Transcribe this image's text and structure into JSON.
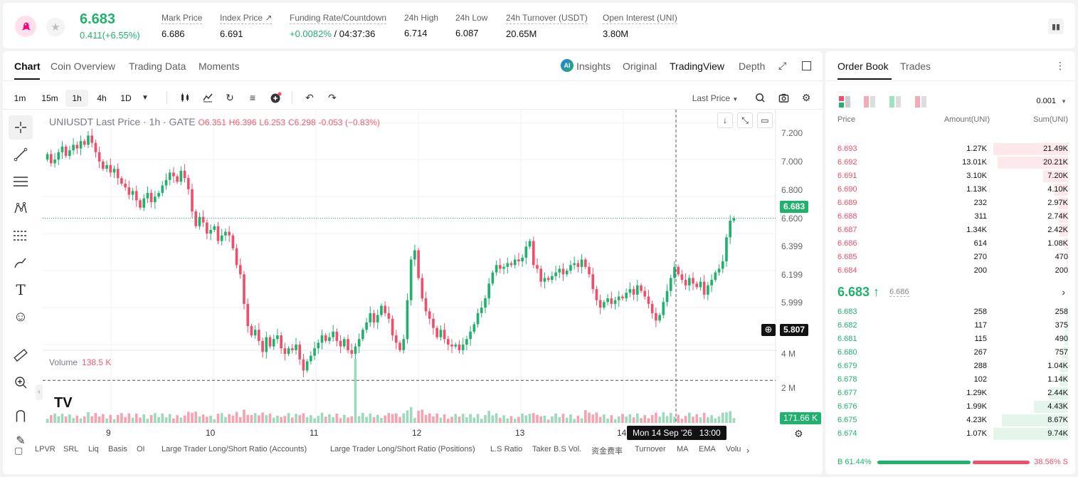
{
  "ticker": {
    "last_price": "6.683",
    "change": "0.411(+6.55%)",
    "stats": [
      {
        "label": "Mark Price",
        "value": "6.686"
      },
      {
        "label": "Index Price ↗",
        "value": "6.691"
      },
      {
        "label": "Funding Rate/Countdown",
        "value": "+0.0082%",
        "value2": " / 04:37:36"
      },
      {
        "label": "24h High",
        "value": "6.714"
      },
      {
        "label": "24h Low",
        "value": "6.087"
      },
      {
        "label": "24h Turnover (USDT)",
        "value": "20.65M"
      },
      {
        "label": "Open Interest (UNI)",
        "value": "3.80M"
      }
    ]
  },
  "chart_tabs": [
    "Chart",
    "Coin Overview",
    "Trading Data",
    "Moments"
  ],
  "view_tabs": {
    "insights": "Insights",
    "original": "Original",
    "tradingview": "TradingView",
    "depth": "Depth"
  },
  "intervals": [
    "1m",
    "15m",
    "1h",
    "4h",
    "1D"
  ],
  "price_select": "Last Price",
  "legend": {
    "symbol": "UNIUSDT Last Price · 1h · GATE",
    "o": "O6.351",
    "h": "H6.396",
    "l": "L6.253",
    "c": "C6.298",
    "chg": "-0.053 (−0.83%)"
  },
  "volume": {
    "label": "Volume",
    "value": "138.5 K",
    "tag": "171.66 K"
  },
  "y_axis": [
    "7.200",
    "7.000",
    "6.800",
    "6.600",
    "6.399",
    "6.199",
    "5.999"
  ],
  "vol_axis": [
    "4 M",
    "2 M"
  ],
  "x_axis": [
    "9",
    "10",
    "11",
    "12",
    "13",
    "14"
  ],
  "crosshair": {
    "price": "5.807",
    "time": "Mon 14 Sep '26",
    "hour": "13:00"
  },
  "last_tag": "6.683",
  "bottom_bar": [
    "LPVR",
    "SRL",
    "Liq",
    "Basis",
    "OI",
    "Large Trader Long/Short Ratio (Accounts)",
    "Large Trader Long/Short Ratio (Positions)",
    "L.S Ratio",
    "Taker B.S Vol.",
    "资金费率",
    "Turnover",
    "MA",
    "EMA",
    "Volu"
  ],
  "chart_data": {
    "type": "candlestick",
    "title": "UNIUSDT Last Price · 1h · GATE",
    "x_labels": [
      "9",
      "10",
      "11",
      "12",
      "13",
      "14"
    ],
    "ylim": [
      5.75,
      7.27
    ],
    "last": 6.683,
    "closes": [
      7.03,
      6.98,
      7.0,
      7.04,
      7.07,
      7.02,
      7.05,
      7.08,
      7.06,
      7.1,
      7.08,
      7.13,
      7.09,
      7.04,
      6.99,
      6.95,
      6.97,
      6.93,
      6.95,
      6.9,
      6.87,
      6.85,
      6.81,
      6.83,
      6.78,
      6.74,
      6.79,
      6.82,
      6.77,
      6.8,
      6.82,
      6.86,
      6.89,
      6.93,
      6.91,
      6.88,
      6.94,
      6.9,
      6.84,
      6.72,
      6.64,
      6.69,
      6.66,
      6.6,
      6.62,
      6.64,
      6.56,
      6.59,
      6.61,
      6.59,
      6.52,
      6.43,
      6.38,
      6.22,
      6.1,
      6.05,
      6.08,
      6.02,
      5.96,
      6.04,
      5.99,
      6.03,
      6.05,
      5.98,
      5.95,
      5.98,
      5.97,
      6.0,
      5.92,
      5.86,
      5.91,
      5.94,
      5.98,
      6.01,
      6.05,
      6.02,
      6.04,
      6.07,
      6.02,
      5.99,
      6.03,
      5.97,
      5.95,
      5.99,
      6.03,
      6.08,
      6.12,
      6.17,
      6.12,
      6.16,
      6.21,
      6.17,
      6.14,
      6.05,
      6.01,
      5.97,
      6.03,
      6.24,
      6.46,
      6.51,
      6.36,
      6.25,
      6.18,
      6.14,
      6.09,
      6.04,
      6.08,
      6.03,
      6.0,
      5.99,
      6.0,
      5.97,
      6.0,
      6.03,
      6.07,
      6.11,
      6.17,
      6.2,
      6.25,
      6.33,
      6.39,
      6.43,
      6.41,
      6.42,
      6.44,
      6.43,
      6.46,
      6.45,
      6.47,
      6.53,
      6.56,
      6.43,
      6.41,
      6.34,
      6.36,
      6.35,
      6.37,
      6.39,
      6.41,
      6.38,
      6.4,
      6.43,
      6.44,
      6.42,
      6.46,
      6.42,
      6.38,
      6.3,
      6.24,
      6.2,
      6.23,
      6.25,
      6.22,
      6.24,
      6.26,
      6.25,
      6.28,
      6.3,
      6.27,
      6.32,
      6.29,
      6.26,
      6.22,
      6.17,
      6.13,
      6.16,
      6.23,
      6.29,
      6.36,
      6.42,
      6.38,
      6.35,
      6.32,
      6.36,
      6.33,
      6.31,
      6.34,
      6.27,
      6.32,
      6.35,
      6.39,
      6.41,
      6.45,
      6.58,
      6.67,
      6.683
    ]
  },
  "orderbook": {
    "tabs": [
      "Order Book",
      "Trades"
    ],
    "tick": "0.001",
    "headers": [
      "Price",
      "Amount(UNI)",
      "Sum(UNI)"
    ],
    "asks": [
      [
        "6.693",
        "1.27K",
        "21.49K"
      ],
      [
        "6.692",
        "13.01K",
        "20.21K"
      ],
      [
        "6.691",
        "3.10K",
        "7.20K"
      ],
      [
        "6.690",
        "1.13K",
        "4.10K"
      ],
      [
        "6.689",
        "232",
        "2.97K"
      ],
      [
        "6.688",
        "311",
        "2.74K"
      ],
      [
        "6.687",
        "1.34K",
        "2.42K"
      ],
      [
        "6.686",
        "614",
        "1.08K"
      ],
      [
        "6.685",
        "270",
        "470"
      ],
      [
        "6.684",
        "200",
        "200"
      ]
    ],
    "mid_price": "6.683 ↑",
    "mid_mark": "6.686",
    "bids": [
      [
        "6.683",
        "258",
        "258"
      ],
      [
        "6.682",
        "117",
        "375"
      ],
      [
        "6.681",
        "115",
        "490"
      ],
      [
        "6.680",
        "267",
        "757"
      ],
      [
        "6.679",
        "288",
        "1.04K"
      ],
      [
        "6.678",
        "102",
        "1.14K"
      ],
      [
        "6.677",
        "1.29K",
        "2.44K"
      ],
      [
        "6.676",
        "1.99K",
        "4.43K"
      ],
      [
        "6.675",
        "4.23K",
        "8.67K"
      ],
      [
        "6.674",
        "1.07K",
        "9.74K"
      ]
    ],
    "buy_pct": "B 61.44%",
    "sell_pct": "38.56% S",
    "buy_ratio": 0.6144
  },
  "colors": {
    "up": "#20b26c",
    "down": "#ef4f6a"
  }
}
